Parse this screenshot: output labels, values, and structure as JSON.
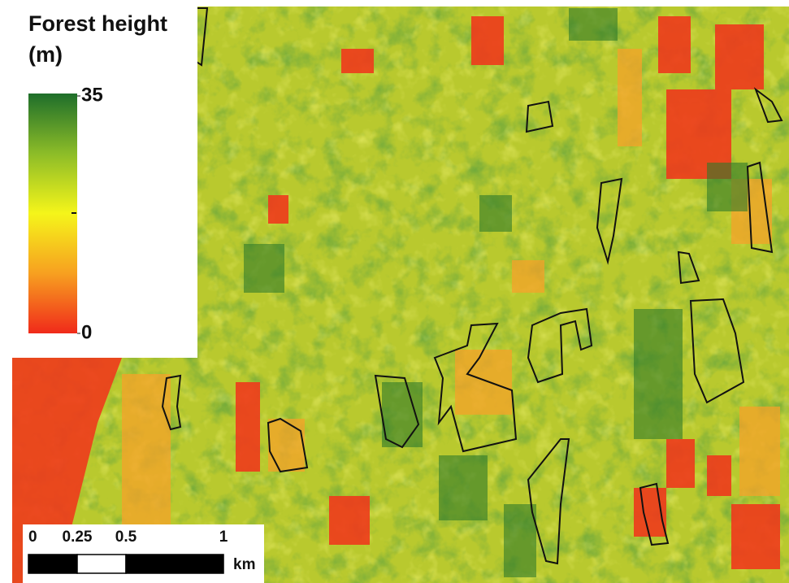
{
  "legend": {
    "title": "Forest height (m)",
    "min": 0,
    "max": 35
  },
  "scale_bar": {
    "ticks": [
      0,
      0.25,
      0.5,
      1
    ],
    "unit": "km"
  }
}
